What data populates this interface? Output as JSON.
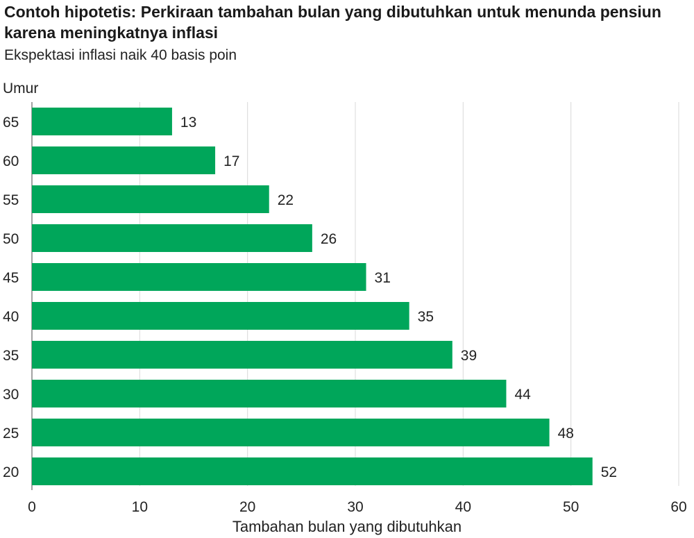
{
  "chart_data": {
    "type": "bar",
    "orientation": "horizontal",
    "title": "Contoh hipotetis: Perkiraan tambahan bulan yang dibutuhkan untuk menunda pensiun karena meningkatnya inflasi",
    "subtitle": "Ekspektasi inflasi naik 40 basis poin",
    "ylabel": "Umur",
    "xlabel": "Tambahan bulan yang dibutuhkan",
    "categories": [
      "65",
      "60",
      "55",
      "50",
      "45",
      "40",
      "35",
      "30",
      "25",
      "20"
    ],
    "values": [
      13,
      17,
      22,
      26,
      31,
      35,
      39,
      44,
      48,
      52
    ],
    "xlim": [
      0,
      60
    ],
    "xticks": [
      0,
      10,
      20,
      30,
      40,
      50,
      60
    ],
    "grid": true,
    "bar_color": "#00a65a",
    "grid_color": "#d9d9d9"
  }
}
